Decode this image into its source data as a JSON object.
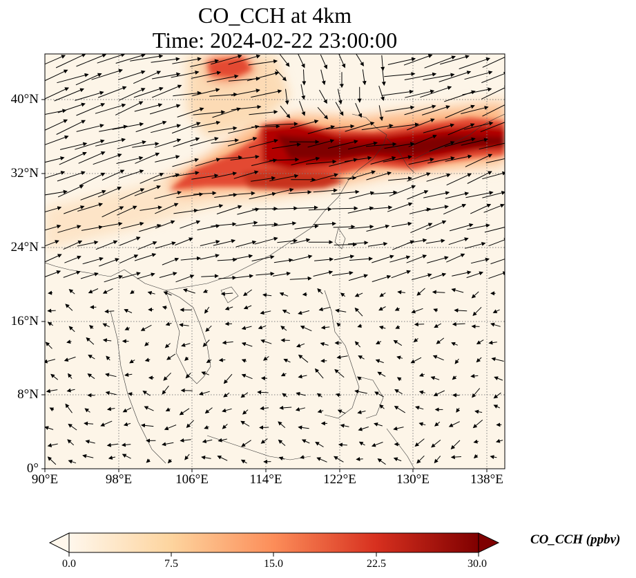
{
  "title_line1": "CO_CCH at 4km",
  "title_line2": "Time: 2024-02-22 23:00:00",
  "map": {
    "lon_range": [
      90,
      140
    ],
    "lat_range": [
      0,
      45
    ],
    "lon_ticks": [
      "90°E",
      "98°E",
      "106°E",
      "114°E",
      "122°E",
      "130°E",
      "138°E"
    ],
    "lat_ticks": [
      "0°",
      "8°N",
      "16°N",
      "24°N",
      "32°N",
      "40°N"
    ],
    "gridlines": true,
    "field_colors": [
      "#fff5eb",
      "#fdd0a2",
      "#fd8d3c",
      "#d94801",
      "#7f0000"
    ],
    "vectors": "wind-arrows"
  },
  "colorbar": {
    "label": "CO_CCH (ppbv)",
    "min": 0.0,
    "max": 30.0,
    "ticks": [
      "0.0",
      "7.5",
      "15.0",
      "22.5",
      "30.0"
    ],
    "extend": "both",
    "colormap": "OrRd"
  }
}
